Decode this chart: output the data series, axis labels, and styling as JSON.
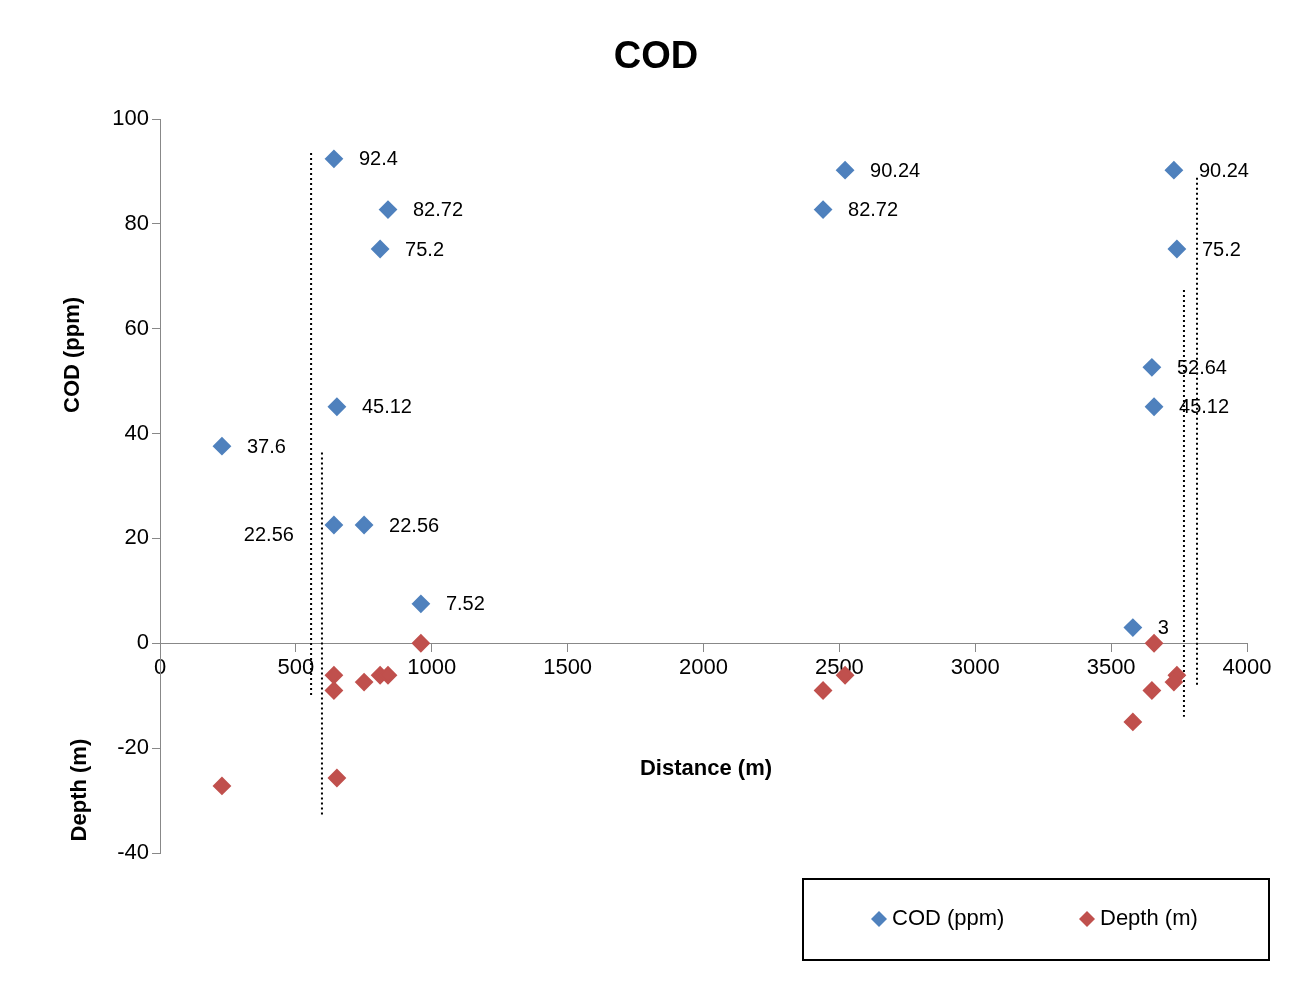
{
  "chart_data": {
    "type": "scatter",
    "title": "COD",
    "xlabel": "Distance (m)",
    "ylabel": "COD (ppm)",
    "y2label": "Depth (m)",
    "xlim": [
      0,
      4000
    ],
    "xticks": [
      0,
      500,
      1000,
      1500,
      2000,
      2500,
      3000,
      3500,
      4000
    ],
    "ylim": [
      -40,
      100
    ],
    "yticks": [
      -40,
      -20,
      0,
      20,
      40,
      60,
      80,
      100
    ],
    "grid": false,
    "legend": "bottom right",
    "marker": "diamond",
    "series": [
      {
        "name": "COD (ppm)",
        "color": "#4f81bd",
        "x": [
          228,
          640,
          839,
          810,
          651,
          640,
          751,
          960,
          2521,
          2440,
          3731,
          3742,
          3650,
          3658,
          3580
        ],
        "values": [
          37.6,
          92.4,
          82.72,
          75.2,
          45.12,
          22.56,
          22.56,
          7.52,
          90.24,
          82.72,
          90.24,
          75.2,
          52.64,
          45.12,
          3
        ],
        "value_labels": [
          "37.6",
          "92.4",
          "82.72",
          "75.2",
          "45.12",
          "22.56",
          "22.56",
          "7.52",
          "90.24",
          "82.72",
          "90.24",
          "75.2",
          "52.64",
          "45.12",
          "3"
        ]
      },
      {
        "name": "Depth (m)",
        "color": "#c0504d",
        "x": [
          228,
          640,
          640,
          651,
          751,
          810,
          839,
          960,
          2521,
          2440,
          3742,
          3731,
          3650,
          3658,
          3580
        ],
        "values": [
          -27.2,
          -6.1,
          -9,
          -25.7,
          -7.4,
          -6.1,
          -6.1,
          0,
          -6.1,
          -9,
          -6.1,
          -7.4,
          -9,
          0,
          -15
        ]
      },
      {
        "type": "line",
        "color": "#000000",
        "line_style": "dotted",
        "marker": "none",
        "x": [
          556,
          556
        ],
        "values": [
          93.5,
          -10
        ]
      },
      {
        "type": "line",
        "color": "#000000",
        "line_style": "dotted",
        "marker": "none",
        "x": [
          596,
          596
        ],
        "values": [
          36.4,
          -33
        ]
      },
      {
        "type": "line",
        "color": "#000000",
        "line_style": "dotted",
        "marker": "none",
        "x": [
          3816,
          3816
        ],
        "values": [
          88.8,
          -8.4
        ]
      },
      {
        "type": "line",
        "color": "#000000",
        "line_style": "dotted",
        "marker": "none",
        "x": [
          3768,
          3768
        ],
        "values": [
          67.4,
          -14
        ]
      }
    ]
  }
}
